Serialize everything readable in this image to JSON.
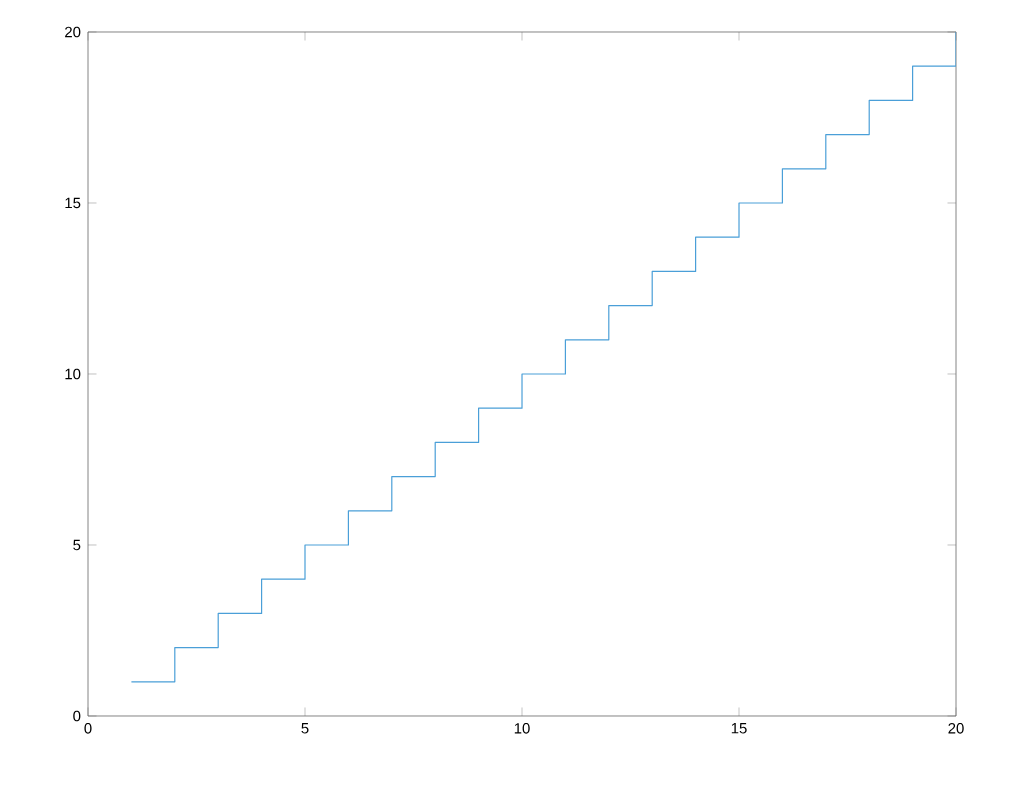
{
  "chart_data": {
    "type": "step",
    "x": [
      1,
      2,
      3,
      4,
      5,
      6,
      7,
      8,
      9,
      10,
      11,
      12,
      13,
      14,
      15,
      16,
      17,
      18,
      19,
      20
    ],
    "values": [
      1,
      2,
      3,
      4,
      5,
      6,
      7,
      8,
      9,
      10,
      11,
      12,
      13,
      14,
      15,
      16,
      17,
      18,
      19,
      20
    ],
    "color": "#4a9fd8",
    "xlim": [
      0,
      20
    ],
    "ylim": [
      0,
      20
    ],
    "xticks": [
      0,
      5,
      10,
      15,
      20
    ],
    "yticks": [
      0,
      5,
      10,
      15,
      20
    ],
    "grid": false
  }
}
